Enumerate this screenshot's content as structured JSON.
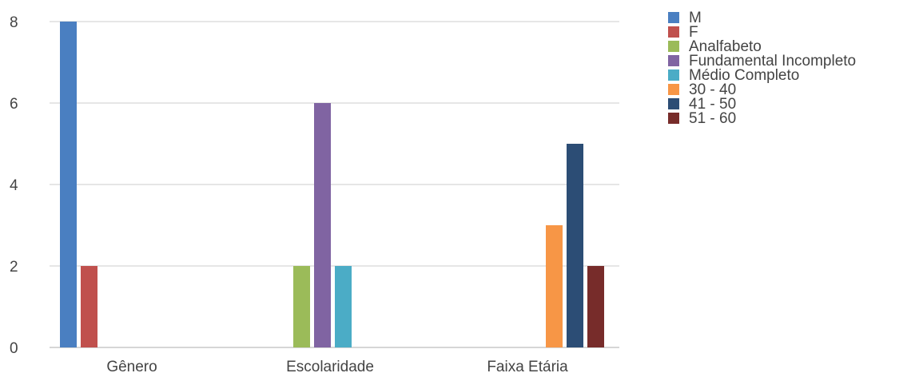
{
  "chart_data": {
    "type": "bar",
    "title": "",
    "xlabel": "",
    "ylabel": "",
    "ylim": [
      0,
      8
    ],
    "yticks": [
      0,
      2,
      4,
      6,
      8
    ],
    "grid": true,
    "legend_position": "right",
    "categories": [
      "Gênero",
      "Escolaridade",
      "Faixa Etária"
    ],
    "series": [
      {
        "name": "M",
        "color": "#4a7fc1",
        "values": [
          8,
          null,
          null
        ]
      },
      {
        "name": "F",
        "color": "#c0504d",
        "values": [
          2,
          null,
          null
        ]
      },
      {
        "name": "Analfabeto",
        "color": "#9bbb59",
        "values": [
          null,
          2,
          null
        ]
      },
      {
        "name": "Fundamental Incompleto",
        "color": "#8064a2",
        "values": [
          null,
          6,
          null
        ]
      },
      {
        "name": "Médio Completo",
        "color": "#4bacc6",
        "values": [
          null,
          2,
          null
        ]
      },
      {
        "name": "30 - 40",
        "color": "#f79646",
        "values": [
          null,
          null,
          3
        ]
      },
      {
        "name": "41 - 50",
        "color": "#2c4d75",
        "values": [
          null,
          null,
          5
        ]
      },
      {
        "name": "51 - 60",
        "color": "#772c2a",
        "values": [
          null,
          null,
          2
        ]
      }
    ]
  }
}
